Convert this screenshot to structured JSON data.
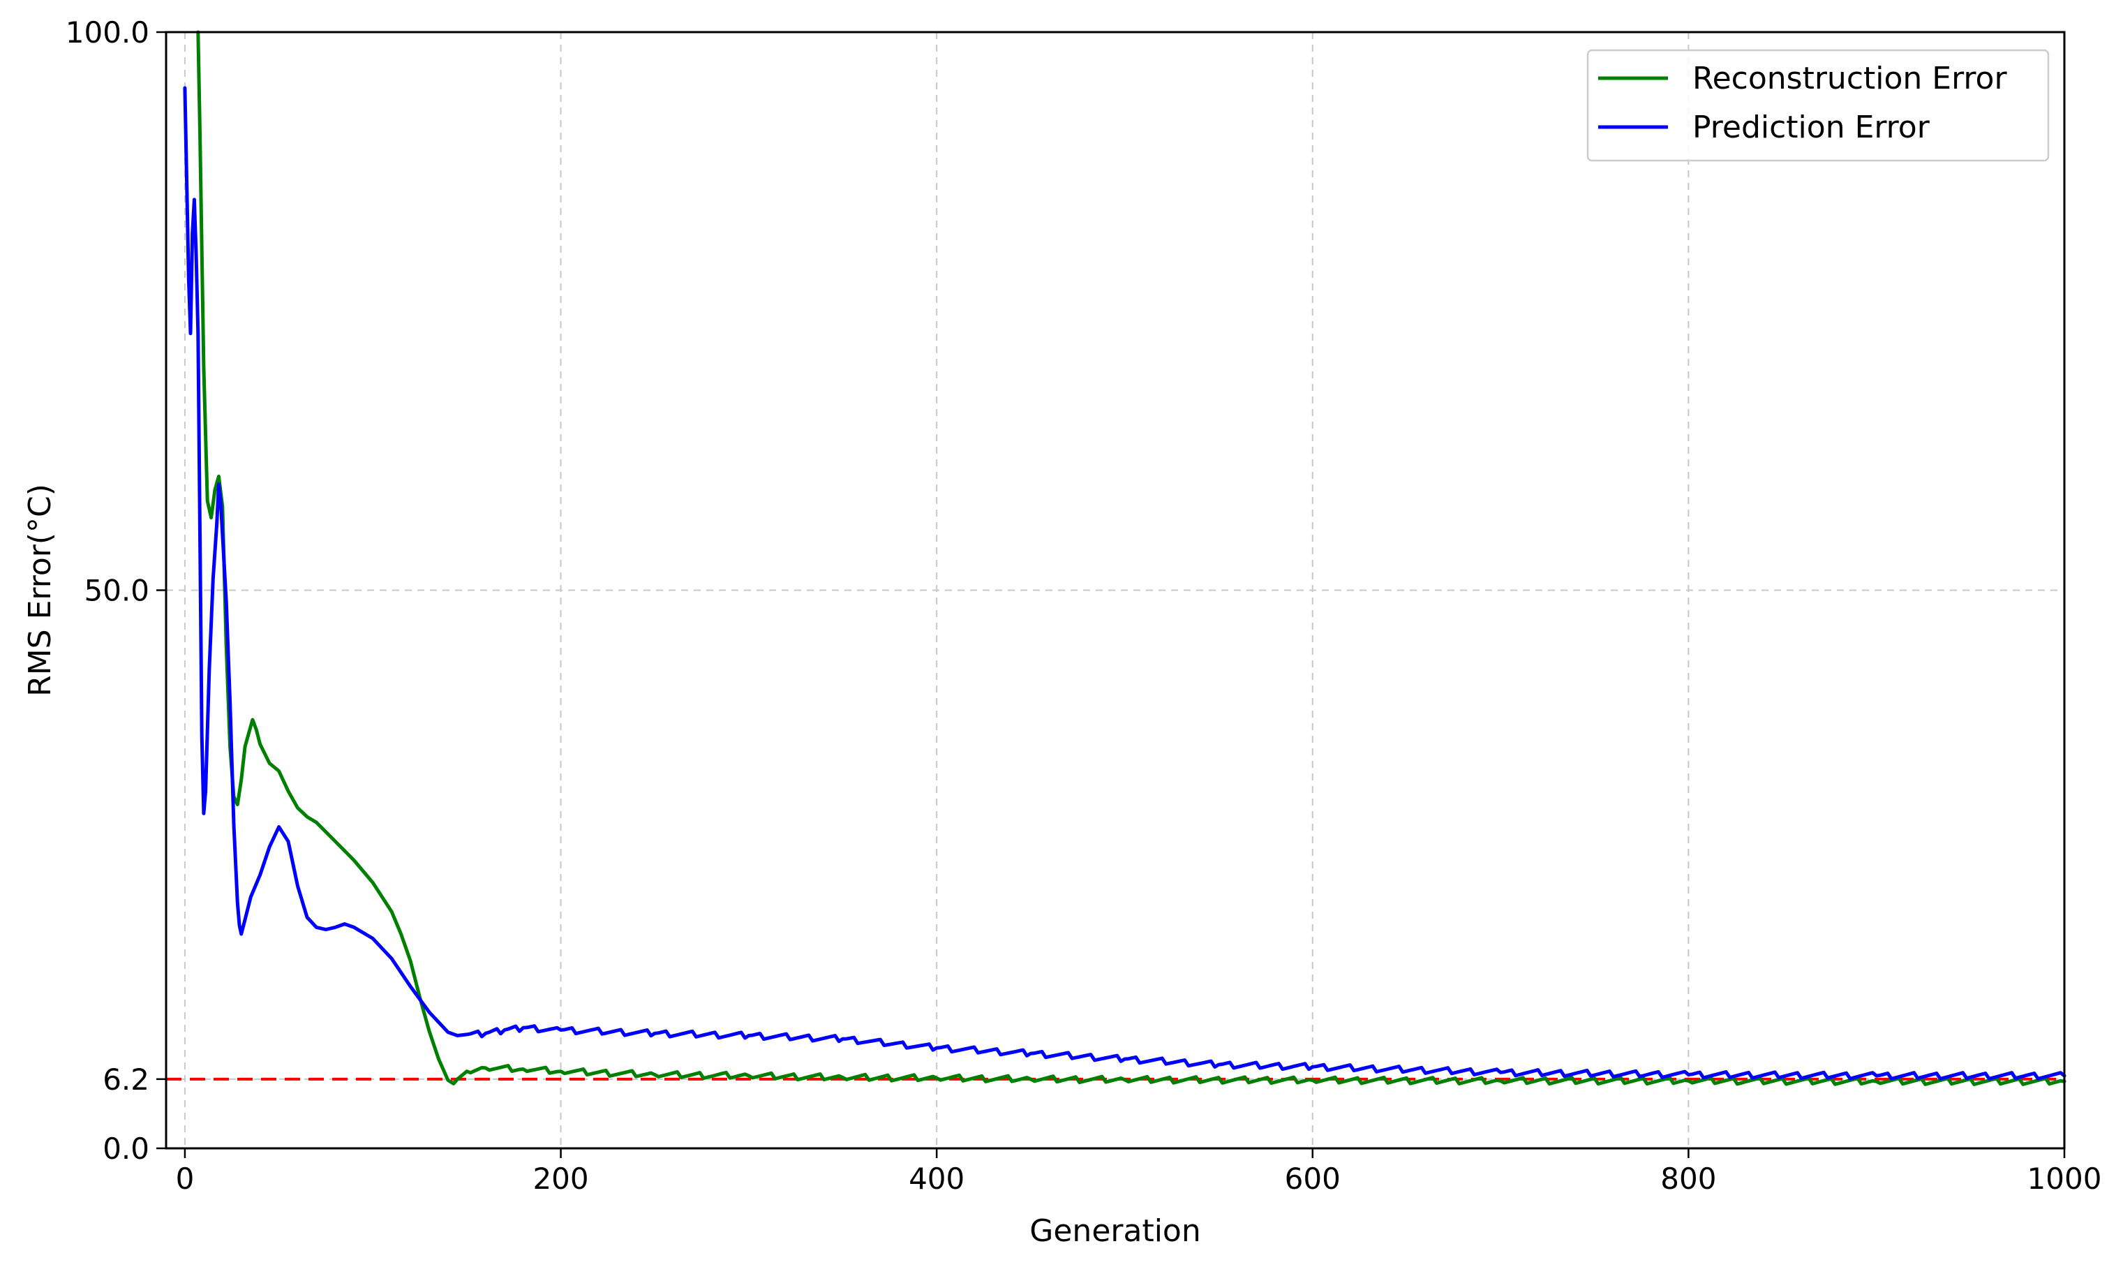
{
  "chart_data": {
    "type": "line",
    "title": "",
    "xlabel": "Generation",
    "ylabel": "RMS Error(°C)",
    "xlim": [
      -10,
      1000
    ],
    "ylim": [
      0,
      100
    ],
    "xticks": [
      0,
      200,
      400,
      600,
      800,
      1000
    ],
    "xtick_labels": [
      "0",
      "200",
      "400",
      "600",
      "800",
      "1000"
    ],
    "yticks": [
      0,
      6.2,
      50,
      100
    ],
    "ytick_labels": [
      "0.0",
      "6.2",
      "50.0",
      "100.0"
    ],
    "grid": true,
    "legend_position": "top-right",
    "reference_line": {
      "y": 6.2,
      "color": "#ff0000",
      "style": "dashed"
    },
    "series": [
      {
        "name": "Reconstruction Error",
        "color": "#008000",
        "x": [
          7,
          8,
          10,
          12,
          14,
          16,
          18,
          20,
          22,
          24,
          26,
          28,
          30,
          32,
          34,
          36,
          38,
          40,
          45,
          50,
          55,
          60,
          65,
          70,
          80,
          90,
          100,
          110,
          115,
          120,
          125,
          130,
          135,
          140,
          143,
          145,
          150,
          160,
          180,
          200,
          250,
          300,
          350,
          400,
          450,
          500,
          600,
          700,
          800,
          900,
          1000
        ],
        "y": [
          100,
          91,
          70,
          58,
          56.5,
          59,
          60.2,
          57.5,
          45,
          36,
          31.5,
          30.8,
          33,
          36,
          37.2,
          38.4,
          37.5,
          36.2,
          34.5,
          33.8,
          32,
          30.5,
          29.7,
          29.2,
          27.5,
          25.8,
          23.8,
          21.2,
          19.2,
          16.8,
          13.5,
          10.5,
          8,
          6.1,
          5.8,
          6.2,
          6.9,
          7.2,
          7.1,
          6.9,
          6.6,
          6.5,
          6.35,
          6.3,
          6.2,
          6.15,
          6.1,
          6.05,
          6.05,
          6.0,
          6.0
        ]
      },
      {
        "name": "Prediction Error",
        "color": "#0000ff",
        "x": [
          0,
          2,
          3,
          4,
          5,
          6,
          7,
          8,
          9,
          10,
          11,
          13,
          15,
          17,
          18,
          19,
          20,
          22,
          24,
          26,
          28,
          29,
          30,
          32,
          35,
          40,
          45,
          50,
          55,
          60,
          65,
          70,
          75,
          80,
          85,
          90,
          100,
          110,
          120,
          130,
          140,
          145,
          150,
          160,
          170,
          180,
          200,
          250,
          300,
          350,
          400,
          450,
          500,
          550,
          600,
          700,
          800,
          900,
          1000
        ],
        "y": [
          95,
          78,
          73,
          82,
          85,
          80,
          73,
          55,
          37,
          30,
          32,
          43,
          51,
          56,
          59.5,
          58,
          55,
          49,
          40,
          29,
          22,
          20,
          19.2,
          20.5,
          22.5,
          24.5,
          27,
          28.8,
          27.5,
          23.5,
          20.7,
          19.8,
          19.6,
          19.8,
          20.1,
          19.8,
          18.8,
          17,
          14.5,
          12.2,
          10.4,
          10.1,
          10.2,
          10.3,
          10.6,
          10.8,
          10.6,
          10.3,
          10.1,
          9.8,
          9.0,
          8.5,
          8.0,
          7.5,
          7.3,
          6.8,
          6.6,
          6.5,
          6.5
        ]
      }
    ]
  }
}
